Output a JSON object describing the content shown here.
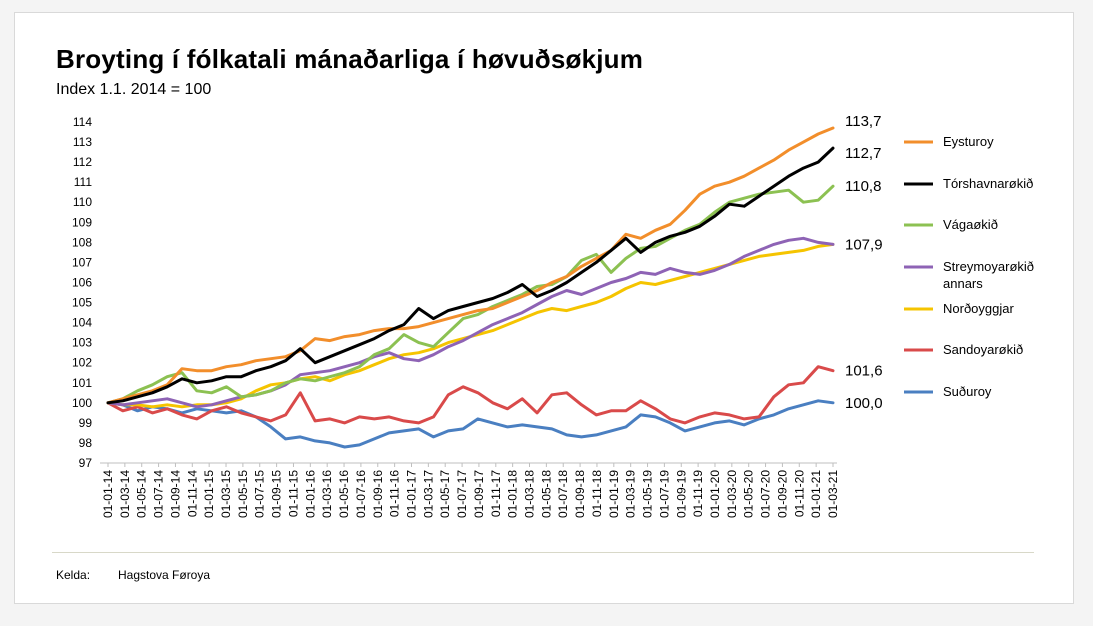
{
  "source": {
    "label": "Kelda:",
    "value": "Hagstova Føroya"
  },
  "chart_data": {
    "type": "line",
    "title": "Broyting í fólkatali mánaðarliga í høvuðsøkjum",
    "subtitle": "Index 1.1. 2014 = 100",
    "ylim": [
      97,
      114
    ],
    "yticks": [
      97,
      98,
      99,
      100,
      101,
      102,
      103,
      104,
      105,
      106,
      107,
      108,
      109,
      110,
      111,
      112,
      113,
      114
    ],
    "x_tick_labels": [
      "01-01-14",
      "01-03-14",
      "01-05-14",
      "01-07-14",
      "01-09-14",
      "01-11-14",
      "01-01-15",
      "01-03-15",
      "01-05-15",
      "01-07-15",
      "01-09-15",
      "01-11-15",
      "01-01-16",
      "01-03-16",
      "01-05-16",
      "01-07-16",
      "01-09-16",
      "01-11-16",
      "01-01-17",
      "01-03-17",
      "01-05-17",
      "01-07-17",
      "01-09-17",
      "01-11-17",
      "01-01-18",
      "01-03-18",
      "01-05-18",
      "01-07-18",
      "01-09-18",
      "01-11-18",
      "01-01-19",
      "01-03-19",
      "01-05-19",
      "01-07-19",
      "01-09-19",
      "01-11-19",
      "01-01-20",
      "01-03-20",
      "01-05-20",
      "01-07-20",
      "01-09-20",
      "01-11-20",
      "01-01-21",
      "01-03-21"
    ],
    "grid": false,
    "legend_position": "right",
    "series": [
      {
        "name": "Eysturoy",
        "color": "#f28e2b",
        "end_label": "113,7",
        "values": [
          100,
          100.2,
          100.4,
          100.6,
          100.9,
          101.7,
          101.6,
          101.6,
          101.8,
          101.9,
          102.1,
          102.2,
          102.3,
          102.6,
          103.2,
          103.1,
          103.3,
          103.4,
          103.6,
          103.7,
          103.7,
          103.8,
          104,
          104.2,
          104.4,
          104.6,
          104.7,
          105,
          105.3,
          105.6,
          106,
          106.3,
          106.8,
          107.2,
          107.6,
          108.4,
          108.2,
          108.6,
          108.9,
          109.6,
          110.4,
          110.8,
          111,
          111.3,
          111.7,
          112.1,
          112.6,
          113,
          113.4,
          113.7
        ]
      },
      {
        "name": "Tórshavnarøkið",
        "color": "#000000",
        "end_label": "112,7",
        "values": [
          100,
          100.1,
          100.3,
          100.5,
          100.8,
          101.2,
          101,
          101.1,
          101.3,
          101.3,
          101.6,
          101.8,
          102.1,
          102.7,
          102,
          102.3,
          102.6,
          102.9,
          103.2,
          103.6,
          103.9,
          104.7,
          104.2,
          104.6,
          104.8,
          105,
          105.2,
          105.5,
          105.9,
          105.3,
          105.6,
          106,
          106.5,
          107,
          107.6,
          108.2,
          107.5,
          108,
          108.3,
          108.5,
          108.8,
          109.3,
          109.9,
          109.8,
          110.3,
          110.8,
          111.3,
          111.7,
          112,
          112.7
        ]
      },
      {
        "name": "Vágaøkið",
        "color": "#8cc152",
        "end_label": "110,8",
        "values": [
          100,
          100.2,
          100.6,
          100.9,
          101.3,
          101.5,
          100.6,
          100.5,
          100.8,
          100.3,
          100.4,
          100.6,
          101,
          101.2,
          101.1,
          101.3,
          101.5,
          101.8,
          102.4,
          102.7,
          103.4,
          103,
          102.8,
          103.5,
          104.2,
          104.4,
          104.8,
          105.1,
          105.4,
          105.8,
          105.9,
          106.3,
          107.1,
          107.4,
          106.5,
          107.2,
          107.7,
          107.8,
          108.2,
          108.6,
          108.9,
          109.5,
          110,
          110.2,
          110.4,
          110.5,
          110.6,
          110,
          110.1,
          110.8
        ]
      },
      {
        "name": "Streymoyarøkið annars",
        "color": "#8e63b5",
        "end_label": "107,9",
        "values": [
          100,
          99.9,
          100,
          100.1,
          100.2,
          100,
          99.8,
          99.9,
          100.1,
          100.3,
          100.4,
          100.6,
          100.9,
          101.4,
          101.5,
          101.6,
          101.8,
          102,
          102.3,
          102.5,
          102.2,
          102.1,
          102.4,
          102.8,
          103.1,
          103.5,
          103.9,
          104.2,
          104.5,
          104.9,
          105.3,
          105.6,
          105.4,
          105.7,
          106,
          106.2,
          106.5,
          106.4,
          106.7,
          106.5,
          106.4,
          106.6,
          106.9,
          107.3,
          107.6,
          107.9,
          108.1,
          108.2,
          108,
          107.9
        ]
      },
      {
        "name": "Norðoyggjar",
        "color": "#f5c400",
        "end_label": "",
        "values": [
          100,
          99.9,
          99.9,
          99.8,
          99.9,
          99.8,
          99.9,
          99.9,
          100,
          100.2,
          100.6,
          100.9,
          101,
          101.2,
          101.3,
          101.1,
          101.4,
          101.6,
          101.9,
          102.2,
          102.4,
          102.5,
          102.7,
          103,
          103.2,
          103.4,
          103.6,
          103.9,
          104.2,
          104.5,
          104.7,
          104.6,
          104.8,
          105,
          105.3,
          105.7,
          106,
          105.9,
          106.1,
          106.3,
          106.5,
          106.7,
          106.9,
          107.1,
          107.3,
          107.4,
          107.5,
          107.6,
          107.8,
          107.9
        ]
      },
      {
        "name": "Sandoyarøkið",
        "color": "#d94a4a",
        "end_label": "101,6",
        "values": [
          100,
          99.6,
          99.8,
          99.5,
          99.7,
          99.4,
          99.2,
          99.6,
          99.8,
          99.5,
          99.3,
          99.1,
          99.4,
          100.5,
          99.1,
          99.2,
          99.0,
          99.3,
          99.2,
          99.3,
          99.1,
          99.0,
          99.3,
          100.4,
          100.8,
          100.5,
          100,
          99.7,
          100.2,
          99.5,
          100.4,
          100.5,
          99.9,
          99.4,
          99.6,
          99.6,
          100.1,
          99.7,
          99.2,
          99.0,
          99.3,
          99.5,
          99.4,
          99.2,
          99.3,
          100.3,
          100.9,
          101,
          101.8,
          101.6
        ]
      },
      {
        "name": "Suðuroy",
        "color": "#4a7fc1",
        "end_label": "100,0",
        "values": [
          100,
          99.9,
          99.6,
          99.8,
          99.7,
          99.5,
          99.7,
          99.6,
          99.5,
          99.6,
          99.3,
          98.8,
          98.2,
          98.3,
          98.1,
          98.0,
          97.8,
          97.9,
          98.2,
          98.5,
          98.6,
          98.7,
          98.3,
          98.6,
          98.7,
          99.2,
          99.0,
          98.8,
          98.9,
          98.8,
          98.7,
          98.4,
          98.3,
          98.4,
          98.6,
          98.8,
          99.4,
          99.3,
          99.0,
          98.6,
          98.8,
          99.0,
          99.1,
          98.9,
          99.2,
          99.4,
          99.7,
          99.9,
          100.1,
          100.0
        ]
      }
    ]
  }
}
